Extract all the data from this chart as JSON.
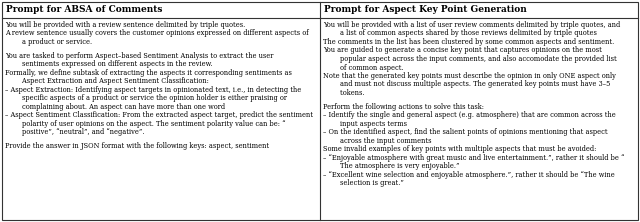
{
  "left_title": "Prompt for ABSA of Comments",
  "left_text": "You will be provided with a review sentence delimited by triple quotes.\nA review sentence usually covers the customer opinions expressed on different aspects of\n        a product or service.\n\nYou are tasked to perform Aspect–based Sentiment Analysis to extract the user\n        sentiments expressed on different aspects in the review.\nFormally, we define subtask of extracting the aspects it corresponding sentiments as\n        Aspect Extraction and Aspect Sentiment Classification:\n– Aspect Extraction: Identifying aspect targets in opinionated text, i.e., in detecting the\n        specific aspects of a product or service the opinion holder is either praising or\n        complaining about. An aspect can have more than one word\n– Aspect Sentiment Classification: From the extracted aspect target, predict the sentiment\n        polarity of user opinions on the aspect. The sentiment polarity value can be: “\n        positive”, “neutral”, and “negative”.\n\nProvide the answer in JSON format with the following keys: aspect, sentiment",
  "right_title": "Prompt for Aspect Key Point Generation",
  "right_text": "You will be provided with a list of user review comments delimited by triple quotes, and\n        a list of common aspects shared by those reviews delimited by triple quotes\nThe comments in the list has been clustered by some common aspects and sentiment.\nYou are guided to generate a concise key point that captures opinions on the most\n        popular aspect across the input comments, and also accomodate the provided list\n        of common aspect.\nNote that the generated key points must describe the opinion in only ONE aspect only\n        and must not discuss multiple aspects. The generated key points must have 3–5\n        tokens.\n\nPerform the following actions to solve this task:\n– Identify the single and general aspect (e.g. atmosphere) that are common across the\n        input aspects terms\n– On the identified aspect, find the salient points of opinions mentioning that aspect\n        across the input comments\nSome invalid examples of key points with multiple aspects that must be avoided:\n– “Enjoyable atmosphere with great music and live entertainment.”, rather it should be “\n        The atmosphere is very enjoyable.”\n– “Excellent wine selection and enjoyable atmosphere.”, rather it should be “The wine\n        selection is great.”",
  "bg_color": "#ffffff",
  "border_color": "#333333",
  "title_bg_color": "#ffffff",
  "text_fontsize": 4.8,
  "title_fontsize": 6.5
}
